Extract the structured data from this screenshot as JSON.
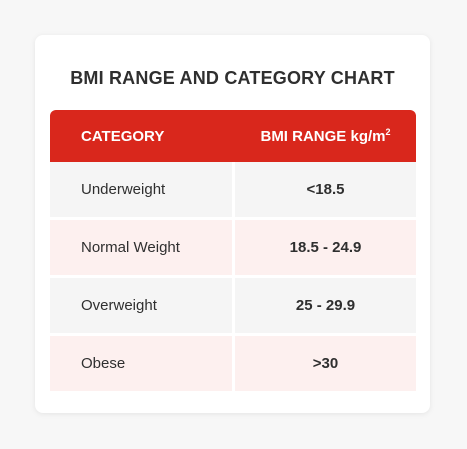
{
  "title": "BMI RANGE AND CATEGORY CHART",
  "table": {
    "headers": {
      "category": "CATEGORY",
      "range": "BMI RANGE kg/m",
      "range_superscript": "2"
    },
    "rows": [
      {
        "category": "Underweight",
        "range": "<18.5"
      },
      {
        "category": "Normal Weight",
        "range": "18.5 - 24.9"
      },
      {
        "category": "Overweight",
        "range": "25 - 29.9"
      },
      {
        "category": "Obese",
        "range": ">30"
      }
    ]
  },
  "colors": {
    "header_bg": "#d9271c",
    "row_gray": "#f5f5f5",
    "row_pink": "#fdf0ef",
    "text": "#2f2f2f"
  }
}
